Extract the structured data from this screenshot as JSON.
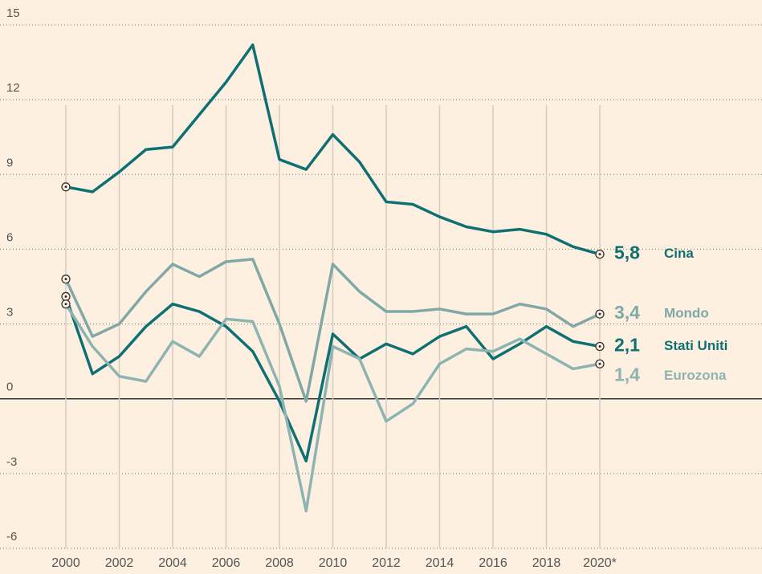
{
  "chart_data": {
    "type": "line",
    "x": [
      2000,
      2001,
      2002,
      2003,
      2004,
      2005,
      2006,
      2007,
      2008,
      2009,
      2010,
      2011,
      2012,
      2013,
      2014,
      2015,
      2016,
      2017,
      2018,
      2019,
      2020
    ],
    "series": [
      {
        "name": "Cina",
        "color": "#0f7074",
        "values": [
          8.5,
          8.3,
          9.1,
          10.0,
          10.1,
          11.4,
          12.7,
          14.2,
          9.6,
          9.2,
          10.6,
          9.5,
          7.9,
          7.8,
          7.3,
          6.9,
          6.7,
          6.8,
          6.6,
          6.1,
          5.8
        ],
        "value_labels": [
          null,
          null,
          null,
          null,
          null,
          null,
          null,
          null,
          null,
          null,
          null,
          null,
          null,
          null,
          null,
          null,
          null,
          null,
          null,
          null,
          "5,8"
        ]
      },
      {
        "name": "Mondo",
        "color": "#7fa8a7",
        "values": [
          4.8,
          2.5,
          3.0,
          4.3,
          5.4,
          4.9,
          5.5,
          5.6,
          3.0,
          -0.1,
          5.4,
          4.3,
          3.5,
          3.5,
          3.6,
          3.4,
          3.4,
          3.8,
          3.6,
          2.9,
          3.4
        ],
        "value_labels": [
          null,
          null,
          null,
          null,
          null,
          null,
          null,
          null,
          null,
          null,
          null,
          null,
          null,
          null,
          null,
          null,
          null,
          null,
          null,
          null,
          "3,4"
        ]
      },
      {
        "name": "Stati Uniti",
        "color": "#0f7074",
        "values": [
          4.1,
          1.0,
          1.7,
          2.9,
          3.8,
          3.5,
          2.9,
          1.9,
          -0.1,
          -2.5,
          2.6,
          1.6,
          2.2,
          1.8,
          2.5,
          2.9,
          1.6,
          2.2,
          2.9,
          2.3,
          2.1
        ],
        "value_labels": [
          null,
          null,
          null,
          null,
          null,
          null,
          null,
          null,
          null,
          null,
          null,
          null,
          null,
          null,
          null,
          null,
          null,
          null,
          null,
          null,
          "2,1"
        ]
      },
      {
        "name": "Eurozona",
        "color": "#8db4b2",
        "values": [
          3.8,
          2.1,
          0.9,
          0.7,
          2.3,
          1.7,
          3.2,
          3.1,
          0.5,
          -4.5,
          2.1,
          1.6,
          -0.9,
          -0.2,
          1.4,
          2.0,
          1.9,
          2.4,
          1.8,
          1.2,
          1.4
        ],
        "value_labels": [
          null,
          null,
          null,
          null,
          null,
          null,
          null,
          null,
          null,
          null,
          null,
          null,
          null,
          null,
          null,
          null,
          null,
          null,
          null,
          null,
          "1,4"
        ]
      }
    ],
    "xlim": [
      2000,
      2020
    ],
    "xticks": [
      2000,
      2002,
      2004,
      2006,
      2008,
      2010,
      2012,
      2014,
      2016,
      2018,
      {
        "value": 2020,
        "label": "2020*"
      }
    ],
    "ylim": [
      -6,
      15
    ],
    "yticks": [
      15,
      12,
      9,
      6,
      3,
      0,
      -3,
      -6
    ],
    "grid": true
  }
}
